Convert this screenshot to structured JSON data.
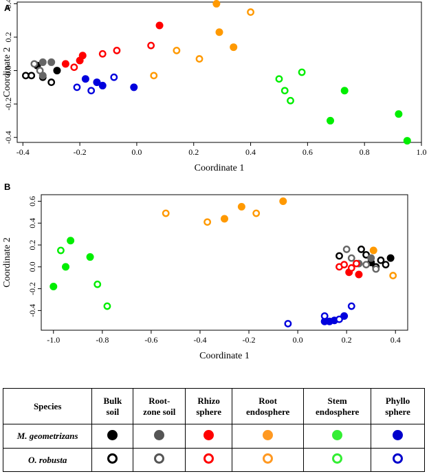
{
  "chart_data": [
    {
      "type": "scatter",
      "panel_label": "A",
      "xlabel": "Coordinate 1",
      "ylabel": "Coordinate 2",
      "xlim": [
        -0.42,
        1.0
      ],
      "ylim": [
        -0.43,
        0.41
      ],
      "xticks": [
        "-0.4",
        "-0.2",
        "0.0",
        "0.2",
        "0.4",
        "0.6",
        "0.8",
        "1.0"
      ],
      "xtick_values": [
        -0.4,
        -0.2,
        0.0,
        0.2,
        0.4,
        0.6,
        0.8,
        1.0
      ],
      "yticks": [
        "0.4",
        "0.2",
        "0.0",
        "-0.2",
        "-0.4"
      ],
      "ytick_values": [
        0.4,
        0.2,
        0.0,
        -0.2,
        -0.4
      ],
      "series": [
        {
          "name": "M. geometrizans - Bulk soil",
          "color": "#000000",
          "filled": true,
          "points": [
            [
              -0.35,
              0.03
            ],
            [
              -0.28,
              0.0
            ]
          ]
        },
        {
          "name": "O. robusta - Bulk soil",
          "color": "#000000",
          "filled": false,
          "points": [
            [
              -0.39,
              -0.03
            ],
            [
              -0.37,
              -0.03
            ],
            [
              -0.33,
              -0.04
            ],
            [
              -0.3,
              -0.07
            ]
          ]
        },
        {
          "name": "M. geometrizans - Root-zone soil",
          "color": "#666666",
          "filled": true,
          "points": [
            [
              -0.33,
              0.05
            ],
            [
              -0.3,
              0.05
            ],
            [
              -0.33,
              -0.03
            ]
          ]
        },
        {
          "name": "O. robusta - Root-zone soil",
          "color": "#666666",
          "filled": false,
          "points": [
            [
              -0.36,
              0.04
            ],
            [
              -0.34,
              0.0
            ]
          ]
        },
        {
          "name": "M. geometrizans - Rhizosphere",
          "color": "#ff0000",
          "filled": true,
          "points": [
            [
              -0.25,
              0.04
            ],
            [
              -0.19,
              0.09
            ],
            [
              -0.2,
              0.06
            ],
            [
              0.08,
              0.27
            ]
          ]
        },
        {
          "name": "O. robusta - Rhizosphere",
          "color": "#ff0000",
          "filled": false,
          "points": [
            [
              -0.22,
              0.02
            ],
            [
              -0.12,
              0.1
            ],
            [
              -0.07,
              0.12
            ],
            [
              0.05,
              0.15
            ]
          ]
        },
        {
          "name": "M. geometrizans - Root endosphere",
          "color": "#ff9900",
          "filled": true,
          "points": [
            [
              0.28,
              0.4
            ],
            [
              0.29,
              0.23
            ],
            [
              0.34,
              0.14
            ]
          ]
        },
        {
          "name": "O. robusta - Root endosphere",
          "color": "#ff9900",
          "filled": false,
          "points": [
            [
              0.4,
              0.35
            ],
            [
              0.14,
              0.12
            ],
            [
              0.22,
              0.07
            ],
            [
              0.06,
              -0.03
            ]
          ]
        },
        {
          "name": "M. geometrizans - Stem endosphere",
          "color": "#00ee00",
          "filled": true,
          "points": [
            [
              0.73,
              -0.12
            ],
            [
              0.68,
              -0.3
            ],
            [
              0.92,
              -0.26
            ],
            [
              0.95,
              -0.42
            ]
          ]
        },
        {
          "name": "O. robusta - Stem endosphere",
          "color": "#00ee00",
          "filled": false,
          "points": [
            [
              0.5,
              -0.05
            ],
            [
              0.58,
              -0.01
            ],
            [
              0.52,
              -0.12
            ],
            [
              0.54,
              -0.18
            ]
          ]
        },
        {
          "name": "M. geometrizans - Phyllosphere",
          "color": "#0000dd",
          "filled": true,
          "points": [
            [
              -0.18,
              -0.05
            ],
            [
              -0.14,
              -0.07
            ],
            [
              -0.12,
              -0.09
            ],
            [
              -0.01,
              -0.1
            ]
          ]
        },
        {
          "name": "O. robusta - Phyllosphere",
          "color": "#0000dd",
          "filled": false,
          "points": [
            [
              -0.21,
              -0.1
            ],
            [
              -0.16,
              -0.12
            ],
            [
              -0.08,
              -0.04
            ]
          ]
        }
      ]
    },
    {
      "type": "scatter",
      "panel_label": "B",
      "xlabel": "Coordinate 1",
      "ylabel": "Coordinate 2",
      "xlim": [
        -1.05,
        0.45
      ],
      "ylim": [
        -0.58,
        0.66
      ],
      "xticks": [
        "-1.0",
        "-0.8",
        "-0.6",
        "-0.4",
        "-0.2",
        "0.0",
        "0.2",
        "0.4"
      ],
      "xtick_values": [
        -1.0,
        -0.8,
        -0.6,
        -0.4,
        -0.2,
        0.0,
        0.2,
        0.4
      ],
      "yticks": [
        "0.6",
        "0.4",
        "0.2",
        "0.0",
        "-0.2",
        "-0.4"
      ],
      "ytick_values": [
        0.6,
        0.4,
        0.2,
        0.0,
        -0.2,
        -0.4
      ],
      "series": [
        {
          "name": "M. geometrizans - Bulk soil",
          "color": "#000000",
          "filled": true,
          "points": [
            [
              0.38,
              0.08
            ],
            [
              0.3,
              0.04
            ]
          ]
        },
        {
          "name": "O. robusta - Bulk soil",
          "color": "#000000",
          "filled": false,
          "points": [
            [
              0.17,
              0.1
            ],
            [
              0.26,
              0.16
            ],
            [
              0.28,
              0.11
            ],
            [
              0.34,
              0.06
            ],
            [
              0.36,
              0.02
            ],
            [
              0.32,
              0.0
            ]
          ]
        },
        {
          "name": "M. geometrizans - Root-zone soil",
          "color": "#666666",
          "filled": true,
          "points": [
            [
              0.25,
              0.03
            ],
            [
              0.3,
              0.08
            ]
          ]
        },
        {
          "name": "O. robusta - Root-zone soil",
          "color": "#666666",
          "filled": false,
          "points": [
            [
              0.2,
              0.16
            ],
            [
              0.22,
              0.08
            ],
            [
              0.28,
              0.02
            ],
            [
              0.32,
              -0.02
            ]
          ]
        },
        {
          "name": "M. geometrizans - Rhizosphere",
          "color": "#ff0000",
          "filled": true,
          "points": [
            [
              0.25,
              -0.07
            ],
            [
              0.21,
              -0.05
            ]
          ]
        },
        {
          "name": "O. robusta - Rhizosphere",
          "color": "#ff0000",
          "filled": false,
          "points": [
            [
              0.17,
              0.0
            ],
            [
              0.19,
              0.02
            ],
            [
              0.22,
              -0.01
            ],
            [
              0.24,
              0.03
            ]
          ]
        },
        {
          "name": "M. geometrizans - Root endosphere",
          "color": "#ff9900",
          "filled": true,
          "points": [
            [
              -0.06,
              0.6
            ],
            [
              -0.23,
              0.55
            ],
            [
              -0.3,
              0.44
            ],
            [
              0.31,
              0.15
            ]
          ]
        },
        {
          "name": "O. robusta - Root endosphere",
          "color": "#ff9900",
          "filled": false,
          "points": [
            [
              -0.54,
              0.49
            ],
            [
              -0.37,
              0.41
            ],
            [
              -0.17,
              0.49
            ],
            [
              0.39,
              -0.08
            ]
          ]
        },
        {
          "name": "M. geometrizans - Stem endosphere",
          "color": "#00ee00",
          "filled": true,
          "points": [
            [
              -0.93,
              0.24
            ],
            [
              -0.85,
              0.09
            ],
            [
              -0.95,
              0.0
            ],
            [
              -1.0,
              -0.18
            ]
          ]
        },
        {
          "name": "O. robusta - Stem endosphere",
          "color": "#00ee00",
          "filled": false,
          "points": [
            [
              -0.97,
              0.15
            ],
            [
              -0.82,
              -0.16
            ],
            [
              -0.78,
              -0.36
            ]
          ]
        },
        {
          "name": "M. geometrizans - Phyllosphere",
          "color": "#0000dd",
          "filled": true,
          "points": [
            [
              0.11,
              -0.5
            ],
            [
              0.13,
              -0.5
            ],
            [
              0.15,
              -0.49
            ],
            [
              0.19,
              -0.45
            ]
          ]
        },
        {
          "name": "O. robusta - Phyllosphere",
          "color": "#0000dd",
          "filled": false,
          "points": [
            [
              -0.04,
              -0.52
            ],
            [
              0.11,
              -0.45
            ],
            [
              0.17,
              -0.48
            ],
            [
              0.22,
              -0.36
            ]
          ]
        }
      ]
    }
  ],
  "legend": {
    "species_header": "Species",
    "columns": [
      {
        "line1": "Bulk",
        "line2": "soil",
        "color": "#000000"
      },
      {
        "line1": "Root-",
        "line2": "zone soil",
        "color": "#555555"
      },
      {
        "line1": "Rhizo",
        "line2": "sphere",
        "color": "#ff0000"
      },
      {
        "line1": "Root",
        "line2": "endosphere",
        "color": "#ff9922"
      },
      {
        "line1": "Stem",
        "line2": "endosphere",
        "color": "#33ee33"
      },
      {
        "line1": "Phyllo",
        "line2": "sphere",
        "color": "#0000cc"
      }
    ],
    "rows": [
      {
        "species": "M. geometrizans",
        "filled": true
      },
      {
        "species": "O. robusta",
        "filled": false
      }
    ]
  }
}
